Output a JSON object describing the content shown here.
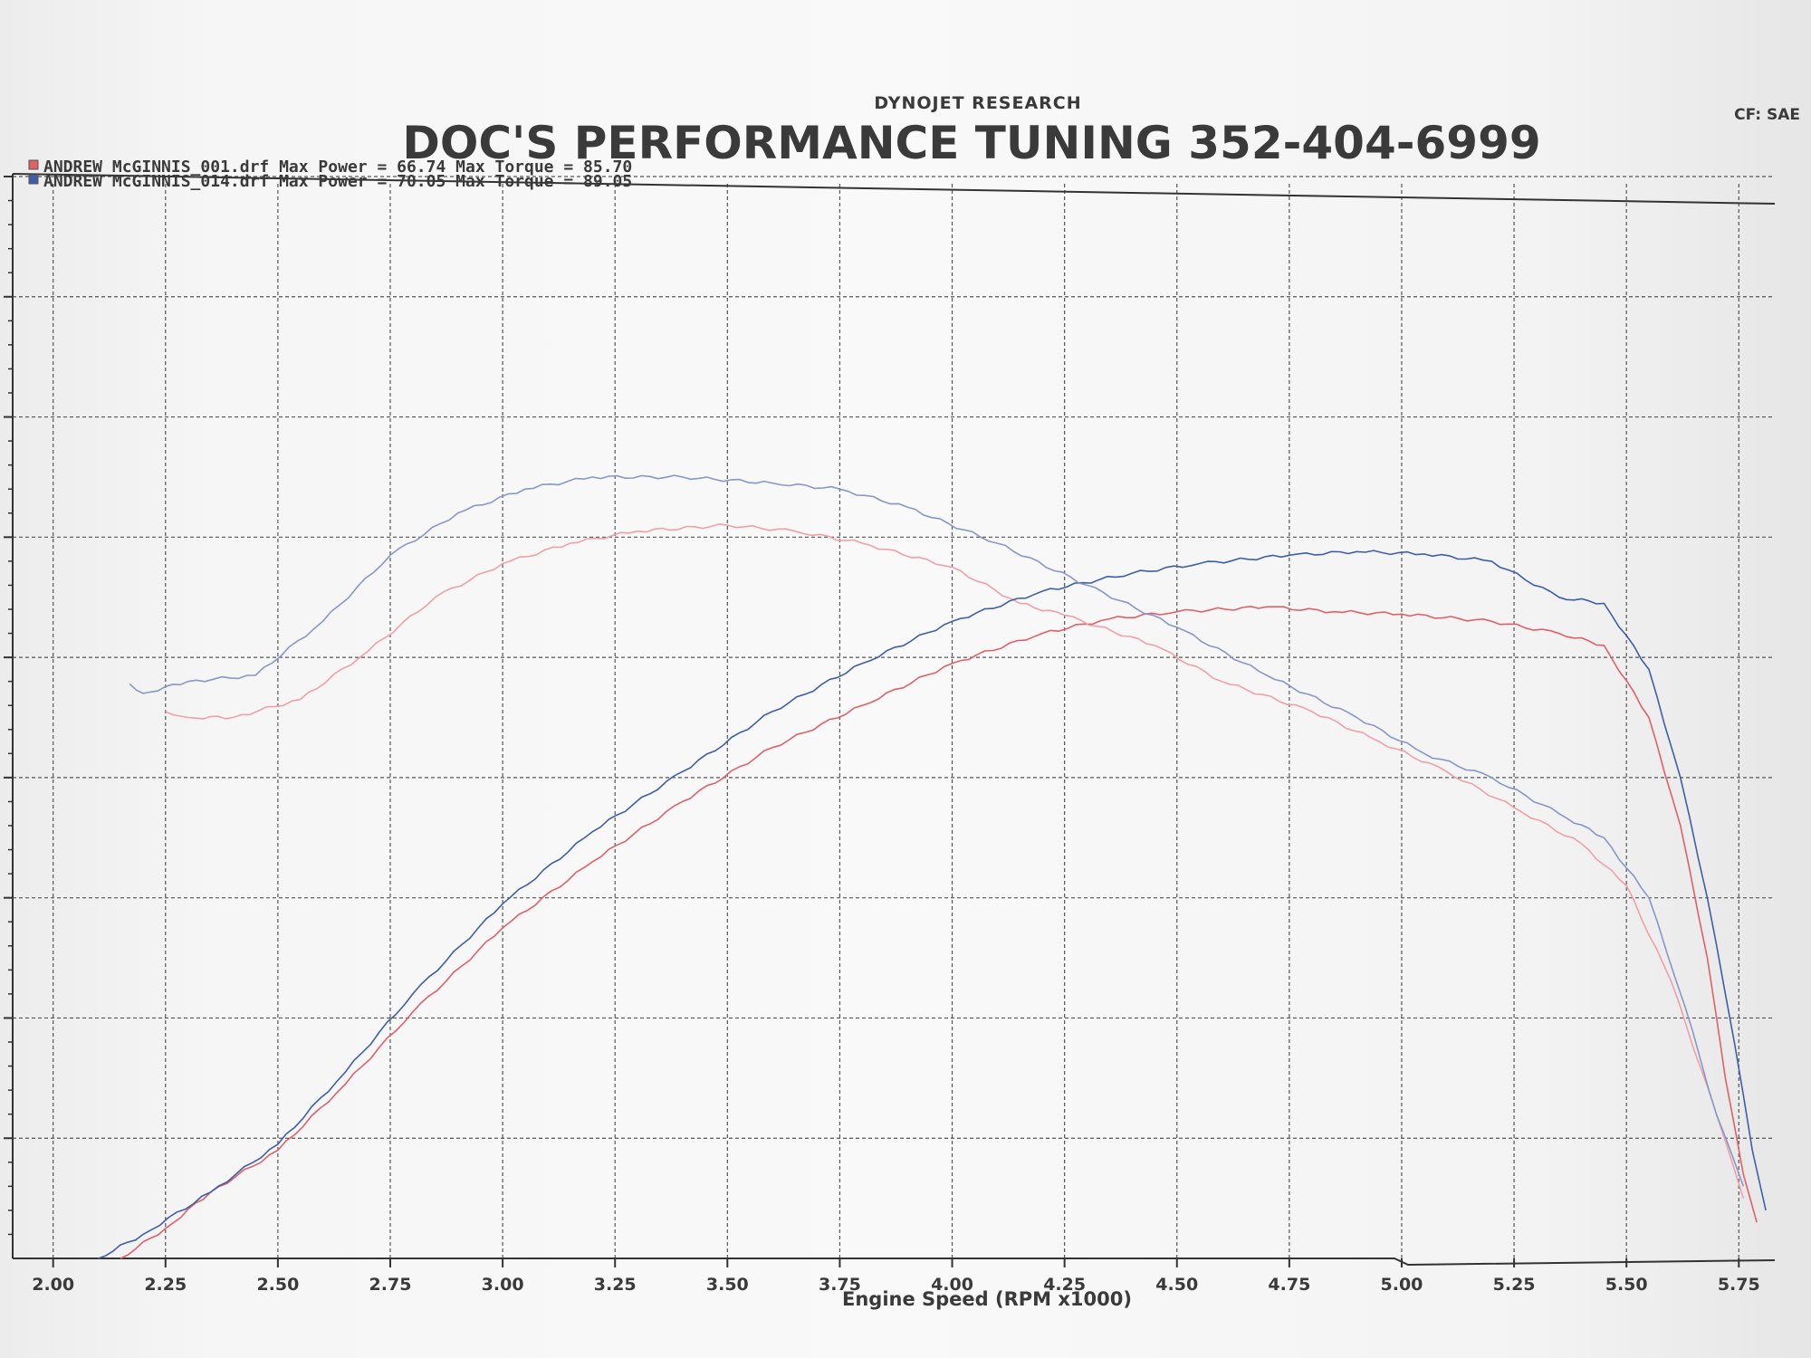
{
  "header": {
    "research": "DYNOJET RESEARCH",
    "shop": "DOC'S PERFORMANCE TUNING 352-404-6999",
    "correction": "CF: SAE"
  },
  "chart_data": {
    "type": "line",
    "xlabel": "Engine Speed (RPM x1000)",
    "xlim": [
      1.91,
      5.83
    ],
    "ylim": [
      0,
      9
    ],
    "x_ticks": [
      "2.00",
      "2.25",
      "2.50",
      "2.75",
      "3.00",
      "3.25",
      "3.50",
      "3.75",
      "4.00",
      "4.25",
      "4.50",
      "4.75",
      "5.00",
      "5.25",
      "5.50",
      "5.75"
    ],
    "grid": true,
    "legend": "top-left",
    "series": [
      {
        "name": "ANDREW McGINNIS_001.drf Max Power = 66.74    Max Torque = 85.70",
        "run": "001",
        "color": "#e0606a",
        "power": {
          "x": [
            2.15,
            2.25,
            2.35,
            2.5,
            2.65,
            2.8,
            3.0,
            3.2,
            3.4,
            3.6,
            3.8,
            4.0,
            4.2,
            4.35,
            4.5,
            4.7,
            4.85,
            5.0,
            5.2,
            5.35,
            5.45,
            5.55,
            5.62,
            5.68,
            5.72,
            5.76,
            5.79
          ],
          "y": [
            0.0,
            0.25,
            0.55,
            0.9,
            1.45,
            2.05,
            2.75,
            3.3,
            3.8,
            4.25,
            4.6,
            4.95,
            5.2,
            5.32,
            5.38,
            5.42,
            5.38,
            5.36,
            5.3,
            5.2,
            5.1,
            4.5,
            3.6,
            2.5,
            1.5,
            0.7,
            0.3
          ]
        },
        "torque": {
          "x": [
            2.25,
            2.3,
            2.4,
            2.55,
            2.7,
            2.85,
            3.0,
            3.15,
            3.3,
            3.5,
            3.65,
            3.8,
            4.0,
            4.15,
            4.25,
            4.45,
            4.6,
            4.8,
            4.95,
            5.1,
            5.25,
            5.4,
            5.5,
            5.6,
            5.7,
            5.76
          ],
          "y": [
            4.55,
            4.5,
            4.5,
            4.65,
            5.05,
            5.5,
            5.78,
            5.95,
            6.05,
            6.1,
            6.05,
            5.95,
            5.75,
            5.45,
            5.35,
            5.1,
            4.8,
            4.55,
            4.3,
            4.05,
            3.75,
            3.45,
            3.1,
            2.3,
            1.2,
            0.5
          ]
        }
      },
      {
        "name": "ANDREW McGINNIS_014.drf Max Power = 70.05    Max Torque = 89.05",
        "run": "014",
        "color": "#3e5ea8",
        "power": {
          "x": [
            2.1,
            2.2,
            2.35,
            2.5,
            2.65,
            2.8,
            3.0,
            3.2,
            3.4,
            3.6,
            3.8,
            4.0,
            4.2,
            4.4,
            4.55,
            4.75,
            4.9,
            5.05,
            5.2,
            5.35,
            5.45,
            5.55,
            5.62,
            5.68,
            5.74,
            5.78,
            5.81
          ],
          "y": [
            0.0,
            0.2,
            0.55,
            0.95,
            1.55,
            2.2,
            2.95,
            3.55,
            4.05,
            4.55,
            4.95,
            5.3,
            5.55,
            5.7,
            5.78,
            5.85,
            5.88,
            5.86,
            5.8,
            5.5,
            5.45,
            4.9,
            4.0,
            3.0,
            1.8,
            0.9,
            0.4
          ]
        },
        "torque": {
          "x": [
            2.17,
            2.2,
            2.3,
            2.45,
            2.6,
            2.75,
            2.9,
            3.05,
            3.2,
            3.4,
            3.6,
            3.75,
            3.9,
            4.1,
            4.3,
            4.5,
            4.7,
            4.9,
            5.05,
            5.2,
            5.35,
            5.45,
            5.55,
            5.63,
            5.7,
            5.76
          ],
          "y": [
            4.78,
            4.7,
            4.8,
            4.85,
            5.3,
            5.85,
            6.2,
            6.4,
            6.5,
            6.5,
            6.45,
            6.4,
            6.25,
            5.95,
            5.6,
            5.25,
            4.85,
            4.5,
            4.2,
            4.0,
            3.7,
            3.5,
            3.0,
            2.1,
            1.2,
            0.6
          ]
        }
      }
    ]
  }
}
